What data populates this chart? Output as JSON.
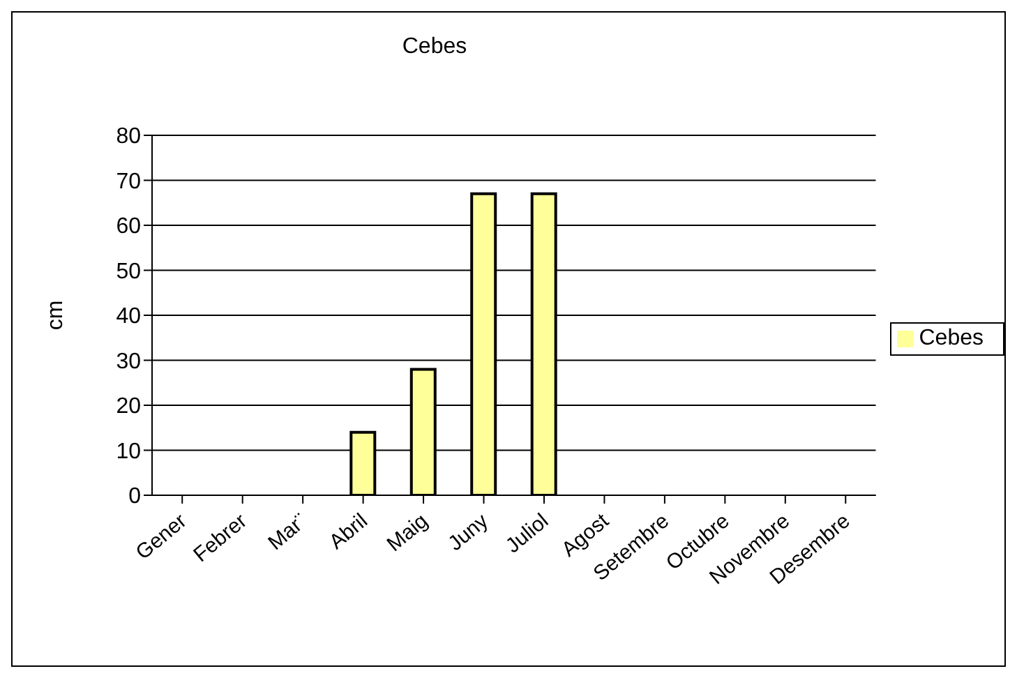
{
  "chart_data": {
    "type": "bar",
    "title": "Cebes",
    "ylabel": "cm",
    "categories": [
      "Gener",
      "Febrer",
      "Mar¨",
      "Abril",
      "Maig",
      "Juny",
      "Juliol",
      "Agost",
      "Setembre",
      "Octubre",
      "Novembre",
      "Desembre"
    ],
    "series": [
      {
        "name": "Cebes",
        "color": "#ffff99",
        "values": [
          null,
          null,
          null,
          14,
          28,
          67,
          67,
          null,
          null,
          null,
          null,
          null
        ]
      }
    ],
    "ylim": [
      0,
      80
    ],
    "yticks": [
      0,
      10,
      20,
      30,
      40,
      50,
      60,
      70,
      80
    ],
    "grid": "y",
    "legend": "right"
  }
}
